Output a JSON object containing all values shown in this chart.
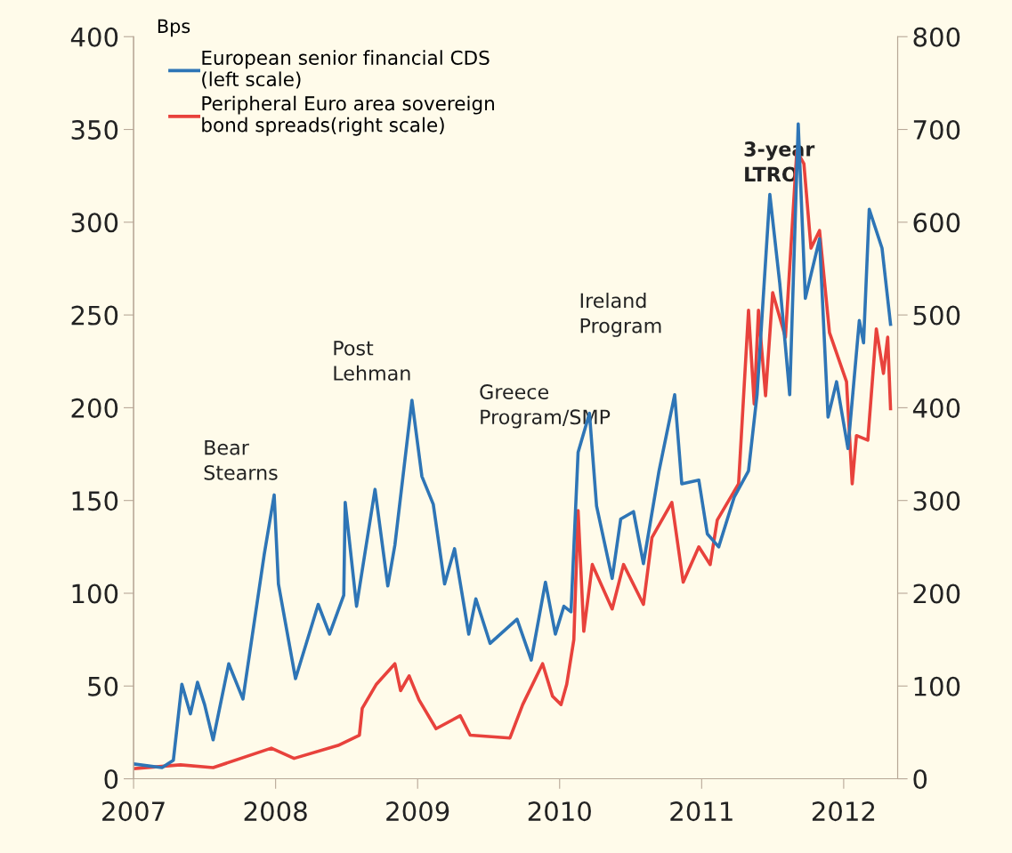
{
  "chart_data": {
    "type": "line",
    "ylabel": "Bps",
    "xlim": [
      2007,
      2012.38
    ],
    "xticks": [
      2007,
      2008,
      2009,
      2010,
      2011,
      2012
    ],
    "ylim": [
      0,
      400
    ],
    "yticks": [
      0,
      50,
      100,
      150,
      200,
      250,
      300,
      350,
      400
    ],
    "y2lim": [
      0,
      800
    ],
    "y2ticks": [
      0,
      100,
      200,
      300,
      400,
      500,
      600,
      700,
      800
    ],
    "legend": "top left",
    "grid": false,
    "series": [
      {
        "name": "European senior financial CDS\n(left scale)",
        "color": "#2e75b6",
        "x": [
          2007.0,
          2007.2,
          2007.28,
          2007.34,
          2007.4,
          2007.45,
          2007.5,
          2007.56,
          2007.67,
          2007.77,
          2007.92,
          2007.99,
          2008.02,
          2008.14,
          2008.3,
          2008.38,
          2008.48,
          2008.49,
          2008.57,
          2008.7,
          2008.79,
          2008.84,
          2008.96,
          2009.03,
          2009.11,
          2009.19,
          2009.26,
          2009.36,
          2009.41,
          2009.51,
          2009.7,
          2009.8,
          2009.9,
          2009.97,
          2010.03,
          2010.08,
          2010.13,
          2010.21,
          2010.26,
          2010.37,
          2010.43,
          2010.52,
          2010.59,
          2010.7,
          2010.81,
          2010.86,
          2010.98,
          2011.04,
          2011.12,
          2011.23,
          2011.33,
          2011.39,
          2011.48,
          2011.55,
          2011.59,
          2011.62,
          2011.68,
          2011.73,
          2011.83,
          2011.89,
          2011.95,
          2012.03,
          2012.11,
          2012.14,
          2012.18,
          2012.27,
          2012.33
        ],
        "values": [
          8,
          6,
          10,
          51,
          35,
          52,
          40,
          21,
          62,
          43,
          121,
          153,
          105,
          54,
          94,
          78,
          99,
          149,
          93,
          156,
          104,
          126,
          204,
          163,
          148,
          105,
          124,
          78,
          97,
          73,
          86,
          64,
          106,
          78,
          93,
          90,
          176,
          197,
          147,
          108,
          140,
          144,
          116,
          166,
          207,
          159,
          161,
          132,
          125,
          152,
          166,
          207,
          315,
          267,
          233,
          207,
          353,
          259,
          291,
          195,
          214,
          178,
          247,
          235,
          307,
          286,
          245
        ]
      },
      {
        "name": "Peripheral Euro area sovereign\nbond spreads(right scale)",
        "color": "#e8423c",
        "axis": "y2",
        "x": [
          2007.01,
          2007.33,
          2007.56,
          2007.97,
          2008.13,
          2008.44,
          2008.59,
          2008.61,
          2008.71,
          2008.84,
          2008.88,
          2008.94,
          2009.01,
          2009.13,
          2009.3,
          2009.37,
          2009.65,
          2009.74,
          2009.88,
          2009.95,
          2010.01,
          2010.05,
          2010.1,
          2010.13,
          2010.17,
          2010.23,
          2010.37,
          2010.45,
          2010.59,
          2010.65,
          2010.79,
          2010.87,
          2010.98,
          2011.06,
          2011.11,
          2011.26,
          2011.33,
          2011.37,
          2011.4,
          2011.45,
          2011.5,
          2011.59,
          2011.67,
          2011.72,
          2011.77,
          2011.83,
          2011.9,
          2012.02,
          2012.06,
          2012.09,
          2012.17,
          2012.23,
          2012.28,
          2012.31,
          2012.33
        ],
        "values": [
          11,
          15,
          12,
          33,
          22,
          36,
          47,
          76,
          102,
          124,
          95,
          111,
          85,
          54,
          68,
          47,
          44,
          80,
          124,
          89,
          80,
          102,
          150,
          289,
          159,
          231,
          183,
          231,
          188,
          260,
          298,
          212,
          250,
          231,
          279,
          318,
          505,
          404,
          505,
          413,
          524,
          476,
          677,
          663,
          572,
          591,
          481,
          428,
          318,
          370,
          365,
          485,
          437,
          476,
          399
        ]
      }
    ],
    "annotations": [
      "Bear\nStearns",
      "Post\nLehman",
      "Greece\nProgram/SMP",
      "Ireland\nProgram",
      "3-year\nLTRO"
    ]
  }
}
